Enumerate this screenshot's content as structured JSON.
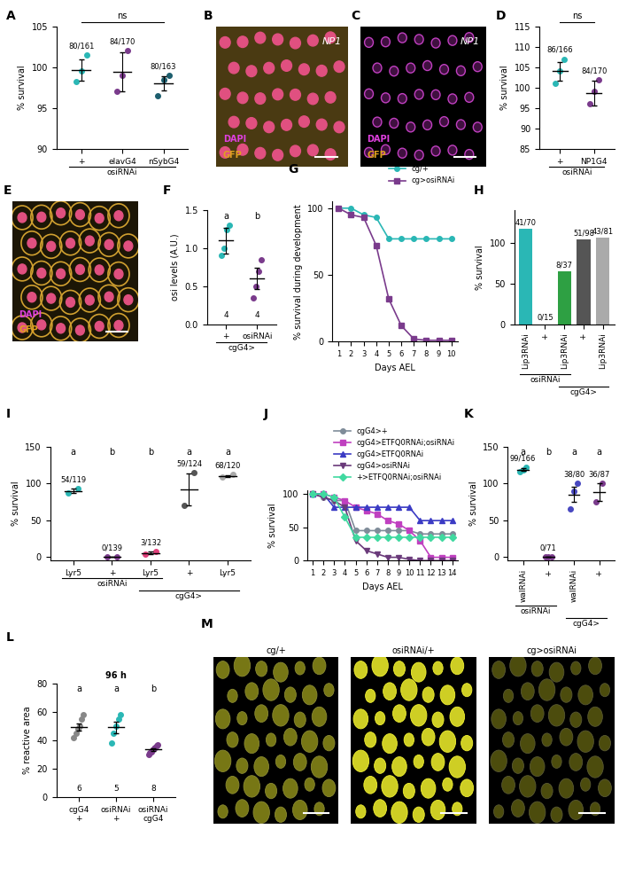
{
  "chart_panels": [
    "A",
    "D",
    "F",
    "G",
    "H",
    "I",
    "J",
    "K",
    "L"
  ],
  "image_panels": [
    "B",
    "C",
    "E",
    "M"
  ],
  "chart_data": [
    {
      "type": "scatter",
      "categories": [
        "+",
        "elavG4",
        "nSybG4"
      ],
      "groups": [
        {
          "label": "osiRNAi",
          "members": [
            0,
            1,
            2
          ]
        }
      ],
      "points": [
        [
          98.2,
          99.5,
          101.5
        ],
        [
          97,
          99,
          102
        ],
        [
          96.5,
          98.5,
          99
        ]
      ],
      "values": [
        99.7,
        99.4,
        98
      ],
      "errors": [
        1.3,
        2.4,
        0.9
      ],
      "colors": [
        "#2ab7b5",
        "#7a3b8c",
        "#1d5e6e"
      ],
      "count_labels": [
        "80/161",
        "84/170",
        "80/163"
      ],
      "annotations": [
        "ns"
      ],
      "y_label": "% survival",
      "ylim": [
        90,
        105
      ],
      "yticks": [
        90,
        95,
        100,
        105
      ]
    },
    {
      "type": "scatter",
      "categories": [
        "+",
        "NP1G4"
      ],
      "groups": [
        {
          "label": "osiRNAi",
          "members": [
            0,
            1
          ]
        }
      ],
      "points": [
        [
          101,
          104,
          107
        ],
        [
          96,
          99,
          102
        ]
      ],
      "values": [
        104,
        98.7
      ],
      "errors": [
        2.2,
        3.0
      ],
      "colors": [
        "#2ab7b5",
        "#7a3b8c"
      ],
      "count_labels": [
        "86/166",
        "84/170"
      ],
      "annotations": [
        "ns"
      ],
      "y_label": "% survival",
      "ylim": [
        85,
        115
      ],
      "yticks": [
        85,
        90,
        95,
        100,
        105,
        110,
        115
      ]
    },
    {
      "type": "scatter",
      "categories": [
        "+",
        "osiRNAi"
      ],
      "groups": [
        {
          "label": "cgG4>",
          "members": [
            0,
            1
          ]
        }
      ],
      "points": [
        [
          0.9,
          1.0,
          1.25,
          1.3
        ],
        [
          0.35,
          0.5,
          0.7,
          0.85
        ]
      ],
      "values": [
        1.1,
        0.6
      ],
      "errors": [
        0.17,
        0.14
      ],
      "colors": [
        "#2ab7b5",
        "#7a3b8c"
      ],
      "significance": [
        "a",
        "b"
      ],
      "n": [
        4,
        4
      ],
      "y_label": "osi levels (A.U.)",
      "ylim": [
        0,
        1.5
      ],
      "yticks": [
        {
          "value": 0,
          "label": "0.0"
        },
        {
          "value": 0.5,
          "label": "0.5"
        },
        {
          "value": 1.0,
          "label": "1.0"
        },
        {
          "value": 1.5,
          "label": "1.5"
        }
      ]
    },
    {
      "type": "line",
      "x": [
        1,
        2,
        3,
        4,
        5,
        6,
        7,
        8,
        9,
        10
      ],
      "series": [
        {
          "name": "cg/+",
          "color": "#2ab7b5",
          "marker": "circle",
          "values": [
            100,
            100,
            95,
            93,
            77,
            77,
            77,
            77,
            77,
            77
          ]
        },
        {
          "name": "cg>osiRNAi",
          "color": "#7a3b8c",
          "marker": "square",
          "values": [
            100,
            95,
            93,
            72,
            32,
            12,
            2,
            1,
            1,
            1
          ]
        }
      ],
      "x_label": "Days AEL",
      "y_label": "% survival during development",
      "xlim": [
        0.5,
        10.5
      ],
      "xticks": [
        1,
        2,
        3,
        4,
        5,
        6,
        7,
        8,
        9,
        10
      ],
      "ylim": [
        0,
        105
      ],
      "yticks": [
        0,
        50,
        100
      ],
      "legend": "upper right"
    },
    {
      "type": "bar",
      "categories": [
        "Lip3RNAi",
        "+",
        "Lip3RNAi",
        "+",
        "Lip3RNAi"
      ],
      "groups": [
        {
          "label": "osiRNAi",
          "members": [
            0,
            1,
            2
          ]
        },
        {
          "label": "cgG4>",
          "members": [
            2,
            3,
            4
          ]
        }
      ],
      "values": [
        117,
        0,
        65,
        104,
        106
      ],
      "colors": [
        "#2ab7b5",
        "#7a3b8c",
        "#2ea043",
        "#555555",
        "#aaaaaa"
      ],
      "count_labels": [
        "41/70",
        "0/15",
        "8/37",
        "51/98",
        "43/81"
      ],
      "y_label": "% survival",
      "ylim": [
        0,
        140
      ],
      "yticks": [
        0,
        50,
        100
      ]
    },
    {
      "type": "scatter",
      "categories": [
        "Lyr5",
        "+",
        "Lyr5",
        "+",
        "Lyr5"
      ],
      "groups": [
        {
          "label": "osiRNAi",
          "members": [
            0,
            1,
            2
          ]
        },
        {
          "label": "cgG4>",
          "members": [
            2,
            3,
            4
          ]
        }
      ],
      "points": [
        [
          87,
          93
        ],
        [
          0,
          0
        ],
        [
          4,
          7
        ],
        [
          70,
          115
        ],
        [
          109,
          112
        ]
      ],
      "values": [
        90,
        0,
        5.5,
        92,
        110
      ],
      "errors": [
        3,
        0,
        1.5,
        22,
        1.5
      ],
      "colors": [
        "#2ab7b5",
        "#7a3b8c",
        "#e0407a",
        "#555555",
        "#aaaaaa"
      ],
      "count_labels": [
        "54/119",
        "0/139",
        "3/132",
        "59/124",
        "68/120"
      ],
      "significance": [
        "a",
        "b",
        "b",
        "a",
        "a"
      ],
      "y_label": "% survival",
      "ylim": [
        -5,
        150
      ],
      "yticks": [
        0,
        50,
        100,
        150
      ]
    },
    {
      "type": "line",
      "x": [
        1,
        2,
        3,
        4,
        5,
        6,
        7,
        8,
        9,
        10,
        11,
        12,
        13,
        14
      ],
      "series": [
        {
          "name": "cgG4>+",
          "color": "#7f8c99",
          "marker": "circle",
          "values": [
            100,
            95,
            90,
            90,
            45,
            45,
            45,
            45,
            45,
            45,
            40,
            40,
            40,
            40
          ]
        },
        {
          "name": "cgG4>ETFQ0RNAi;osiRNAi",
          "color": "#c040c0",
          "marker": "square",
          "values": [
            100,
            100,
            95,
            90,
            80,
            75,
            70,
            60,
            55,
            45,
            30,
            5,
            5,
            5
          ]
        },
        {
          "name": "cgG4>ETFQ0RNAi",
          "color": "#3b3bc4",
          "marker": "triangle_up",
          "values": [
            100,
            100,
            80,
            80,
            80,
            80,
            80,
            80,
            80,
            80,
            60,
            60,
            60,
            60
          ]
        },
        {
          "name": "cgG4>osiRNAi",
          "color": "#6a3a7a",
          "marker": "triangle_down",
          "values": [
            100,
            95,
            90,
            80,
            30,
            15,
            10,
            5,
            5,
            2,
            0,
            0,
            0,
            0
          ]
        },
        {
          "name": "+>ETFQ0RNAi;osiRNAi",
          "color": "#40d9a0",
          "marker": "diamond",
          "values": [
            100,
            100,
            95,
            65,
            35,
            35,
            35,
            35,
            35,
            35,
            35,
            35,
            35,
            35
          ]
        }
      ],
      "x_label": "Days AEL",
      "y_label": "% survival",
      "xlim": [
        0.5,
        14.5
      ],
      "xticks": [
        1,
        2,
        3,
        4,
        5,
        6,
        7,
        8,
        9,
        10,
        11,
        12,
        13,
        14
      ],
      "ylim": [
        0,
        105
      ],
      "yticks": [
        0,
        50,
        100
      ],
      "legend": "upper right"
    },
    {
      "type": "scatter",
      "categories": [
        "walRNAi",
        "+",
        "walRNAi",
        "+"
      ],
      "groups": [
        {
          "label": "osiRNAi",
          "members": [
            0,
            1
          ]
        },
        {
          "label": "cgG4>",
          "members": [
            2,
            3
          ]
        }
      ],
      "points": [
        [
          116,
          118,
          122
        ],
        [
          0,
          0,
          0
        ],
        [
          65,
          90,
          100
        ],
        [
          75,
          100
        ]
      ],
      "values": [
        119,
        0,
        85,
        88
      ],
      "errors": [
        2,
        0,
        10,
        12
      ],
      "colors": [
        "#2ab7b5",
        "#7a3b8c",
        "#4848c0",
        "#7a3b8c"
      ],
      "count_labels": [
        "99/166",
        "0/71",
        "38/80",
        "36/87"
      ],
      "significance": [
        "a",
        "b",
        "a",
        "a"
      ],
      "y_label": "% survival",
      "ylim": [
        -5,
        150
      ],
      "yticks": [
        0,
        50,
        100,
        150
      ]
    },
    {
      "type": "scatter",
      "title": "96 h",
      "categories": [
        "cgG4",
        "osiRNAi",
        "osiRNAi"
      ],
      "subcategories": [
        "+",
        "+",
        "cgG4"
      ],
      "points": [
        [
          42,
          45,
          48,
          50,
          55,
          58
        ],
        [
          38,
          45,
          50,
          55,
          58
        ],
        [
          30,
          31,
          32,
          33,
          34,
          35,
          36,
          37
        ]
      ],
      "values": [
        49,
        49,
        33.5
      ],
      "errors": [
        2.5,
        4,
        1
      ],
      "colors": [
        "#888888",
        "#2ab7b5",
        "#7a3b8c"
      ],
      "significance": [
        "a",
        "a",
        "b"
      ],
      "n": [
        6,
        5,
        8
      ],
      "y_label": "% reactive area",
      "ylim": [
        0,
        80
      ],
      "yticks": [
        0,
        20,
        40,
        60,
        80
      ]
    }
  ],
  "images": [
    {
      "label": "NP1",
      "channels": [
        {
          "name": "DAPI",
          "color": "#e040e0"
        },
        {
          "name": "GFP",
          "color": "#e0a020"
        }
      ]
    },
    {
      "label": "NP1",
      "channels": [
        {
          "name": "DAPI",
          "color": "#e040e0"
        },
        {
          "name": "GFP",
          "color": "#e0a020"
        }
      ]
    },
    {
      "channels": [
        {
          "name": "DAPI",
          "color": "#e040e0"
        },
        {
          "name": "GFP",
          "color": "#e0a020"
        }
      ]
    },
    {
      "titles": [
        "cg/+",
        "osiRNAi/+",
        "cg>osiRNAi"
      ]
    }
  ]
}
